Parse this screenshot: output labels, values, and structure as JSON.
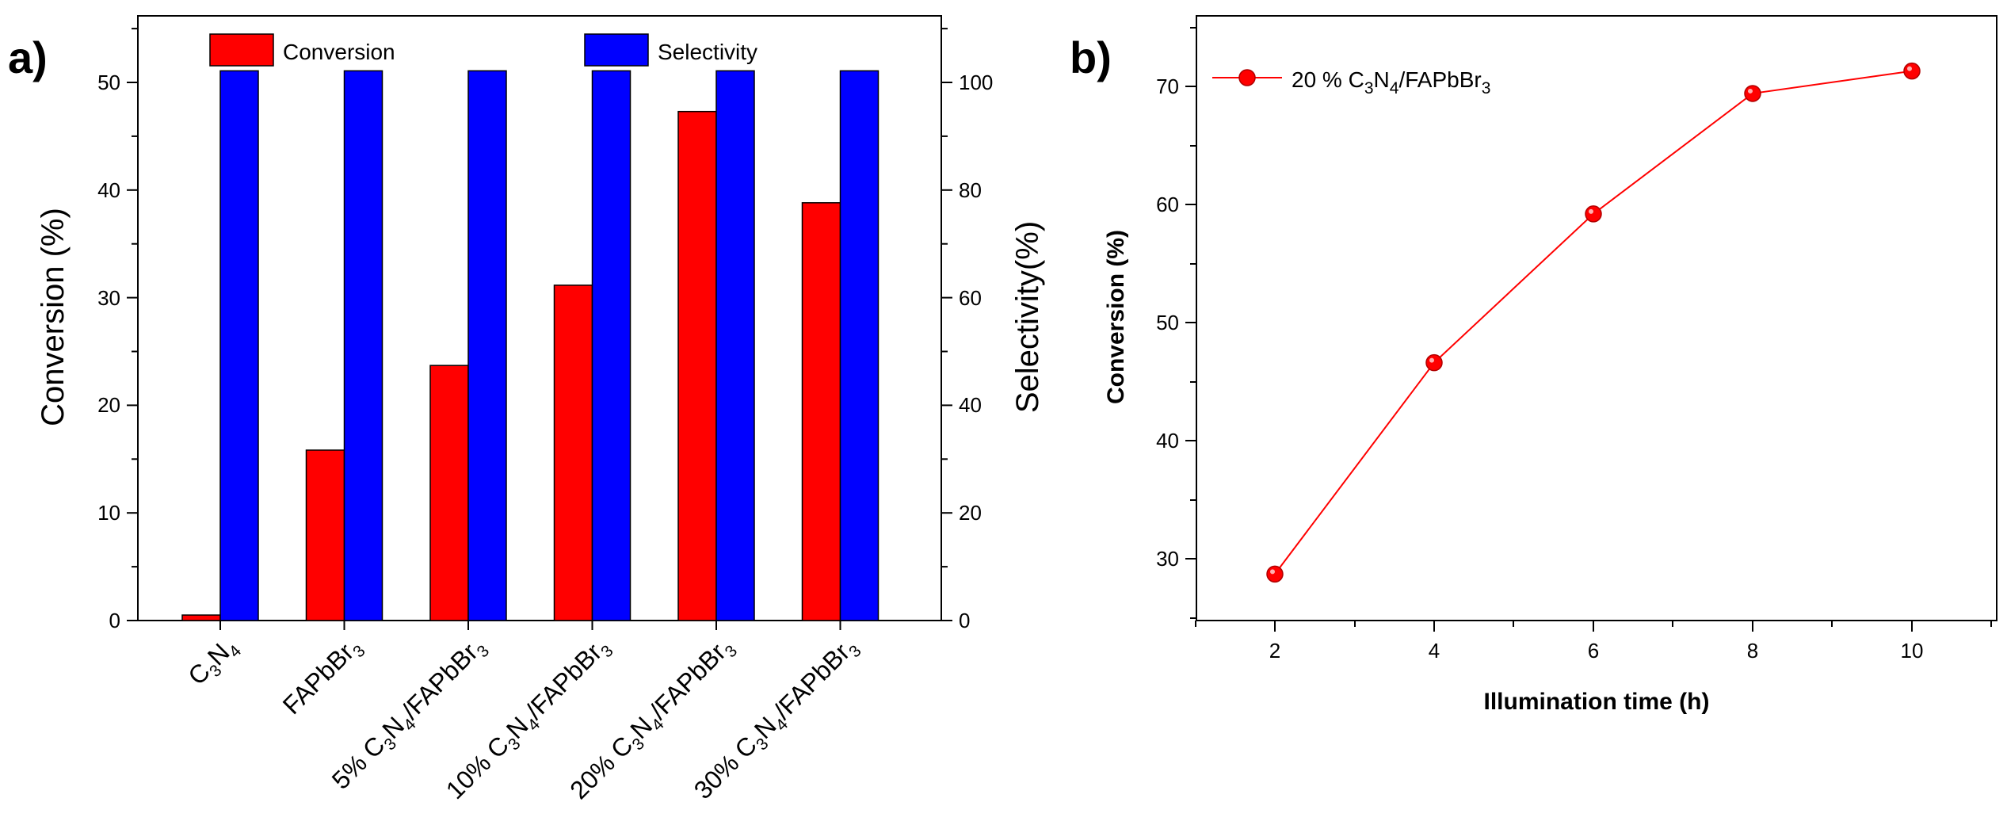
{
  "panel_a": {
    "label": "a)",
    "legend": {
      "conversion": "Conversion",
      "selectivity": "Selectivity"
    },
    "left_axis_label": "Conversion (%)",
    "right_axis_label": "Selectivity(%)",
    "left_ticks": [
      "0",
      "10",
      "20",
      "30",
      "40",
      "50"
    ],
    "right_ticks": [
      "0",
      "20",
      "40",
      "60",
      "80",
      "100"
    ]
  },
  "panel_b": {
    "label": "b)",
    "legend": {
      "prefix": "20 % C",
      "sub1": "3",
      "mid1": "N",
      "sub2": "4",
      "mid2": "/FAPbBr",
      "sub3": "3"
    },
    "x_axis_label": "Illumination time (h)",
    "y_axis_label": "Conversion (%)",
    "x_ticks": [
      "2",
      "4",
      "6",
      "8",
      "10"
    ],
    "y_ticks": [
      "30",
      "40",
      "50",
      "60",
      "70"
    ]
  },
  "colors": {
    "conversion": "#ff0000",
    "selectivity": "#0000ff",
    "line": "#ff0000"
  },
  "chart_data": [
    {
      "type": "bar",
      "title": "",
      "categories": [
        "C3N4",
        "FAPbBr3",
        "5% C3N4/FAPbBr3",
        "10% C3N4/FAPbBr3",
        "20% C3N4/FAPbBr3",
        "30% C3N4/FAPbBr3"
      ],
      "category_labels": [
        [
          [
            "C",
            false
          ],
          [
            "3",
            true
          ],
          [
            "N",
            false
          ],
          [
            "4",
            true
          ]
        ],
        [
          [
            "FAPbBr",
            false
          ],
          [
            "3",
            true
          ]
        ],
        [
          [
            "5% C",
            false
          ],
          [
            "3",
            true
          ],
          [
            "N",
            false
          ],
          [
            "4",
            true
          ],
          [
            "/FAPbBr",
            false
          ],
          [
            "3",
            true
          ]
        ],
        [
          [
            "10% C",
            false
          ],
          [
            "3",
            true
          ],
          [
            "N",
            false
          ],
          [
            "4",
            true
          ],
          [
            "/FAPbBr",
            false
          ],
          [
            "3",
            true
          ]
        ],
        [
          [
            "20% C",
            false
          ],
          [
            "3",
            true
          ],
          [
            "N",
            false
          ],
          [
            "4",
            true
          ],
          [
            "/FAPbBr",
            false
          ],
          [
            "3",
            true
          ]
        ],
        [
          [
            "30% C",
            false
          ],
          [
            "3",
            true
          ],
          [
            "N",
            false
          ],
          [
            "4",
            true
          ],
          [
            "/FAPbBr",
            false
          ],
          [
            "3",
            true
          ]
        ]
      ],
      "series": [
        {
          "name": "Conversion",
          "axis": "left",
          "values": [
            0.5,
            15.5,
            23.2,
            30.5,
            46.3,
            38.0
          ]
        },
        {
          "name": "Selectivity",
          "axis": "right",
          "values": [
            100,
            100,
            100,
            100,
            100,
            100
          ]
        }
      ],
      "ylabel": "Conversion (%)",
      "y2label": "Selectivity(%)",
      "ylim": [
        0,
        55
      ],
      "y2lim": [
        0,
        110
      ],
      "legend_position": "top"
    },
    {
      "type": "line",
      "title": "",
      "x": [
        2,
        4,
        6,
        8,
        10
      ],
      "series": [
        {
          "name": "20 % C3N4/FAPbBr3",
          "values": [
            28.7,
            46.6,
            59.2,
            69.4,
            71.3
          ]
        }
      ],
      "xlabel": "Illumination time (h)",
      "ylabel": "Conversion (%)",
      "xlim": [
        1,
        11
      ],
      "ylim": [
        25,
        75
      ],
      "legend_position": "top-left"
    }
  ]
}
